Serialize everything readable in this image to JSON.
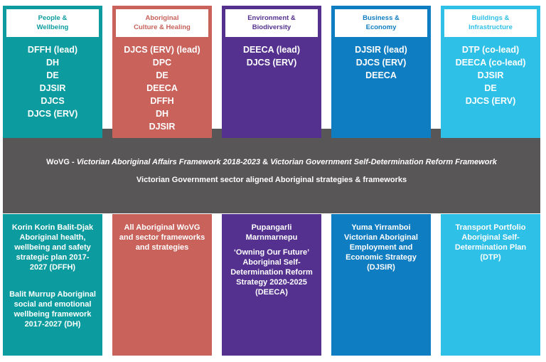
{
  "palette": {
    "teal": "#0C9C9F",
    "coral": "#C8625B",
    "purple": "#54308F",
    "blue": "#0F7DC1",
    "cyan": "#2FC0E7",
    "gray": "#595657"
  },
  "band": {
    "line1_prefix": "WoVG - ",
    "line1_italic1": "Victorian Aboriginal Affairs Framework 2018-2023",
    "line1_amp": " & ",
    "line1_italic2": "Victorian Government Self-Determination Reform Framework",
    "line2": "Victorian Government sector aligned Aboriginal strategies & frameworks"
  },
  "columns": [
    {
      "title": "People &\nWellbeing",
      "agencies": [
        "DFFH (lead)",
        "DH",
        "DE",
        "DJSIR",
        "DJCS",
        "DJCS (ERV)"
      ],
      "strategies": [
        "Korin Korin Balit-Djak Aboriginal health, wellbeing and safety strategic plan 2017-2027 (DFFH)",
        "Balit Murrup Aboriginal social and emotional wellbeing framework 2017-2027 (DH)"
      ]
    },
    {
      "title": "Aboriginal\nCulture & Healing",
      "agencies": [
        "DJCS (ERV) (lead)",
        "DPC",
        "DE",
        "DEECA",
        "DFFH",
        "DH",
        "DJSIR"
      ],
      "strategies": [
        "All Aboriginal WoVG and sector frameworks and strategies"
      ]
    },
    {
      "title": "Environment &\nBiodiversity",
      "agencies": [
        "DEECA (lead)",
        "DJCS (ERV)"
      ],
      "strategies": [
        "Pupangarli Marnmarnepu",
        "‘Owning Our Future’ Aboriginal Self-Determination Reform Strategy 2020-2025 (DEECA)"
      ]
    },
    {
      "title": "Business &\nEconomy",
      "agencies": [
        "DJSIR (lead)",
        "DJCS (ERV)",
        "DEECA"
      ],
      "strategies": [
        "Yuma Yirramboi Victorian Aboriginal Employment and Economic Strategy (DJSIR)"
      ]
    },
    {
      "title": "Buildings &\nInfrastructure",
      "agencies": [
        "DTP (co-lead)",
        "DEECA (co-lead)",
        "DJSIR",
        "DE",
        "DJCS (ERV)"
      ],
      "strategies": [
        "Transport Portfolio Aboriginal Self-Determination Plan (DTP)"
      ]
    }
  ]
}
